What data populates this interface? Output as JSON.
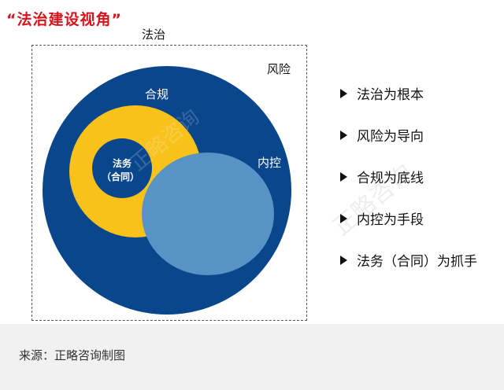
{
  "title": "“法治建设视角”",
  "frame_label": "法治",
  "diagram": {
    "outer_label": "风险",
    "risk_circle_label": "合规",
    "inner_label_line1": "法务",
    "inner_label_line2": "（合同）",
    "control_label": "内控",
    "watermark_circle": "正略咨询",
    "watermark_side": "正略咨询",
    "colors": {
      "dark_blue": "#0a468c",
      "yellow": "#f8c21b",
      "light_blue": "#5893c6"
    }
  },
  "points": [
    "法治为根本",
    "风险为导向",
    "合规为底线",
    "内控为手段",
    "法务（合同）为抓手"
  ],
  "caption": "来源：正略咨询制图"
}
